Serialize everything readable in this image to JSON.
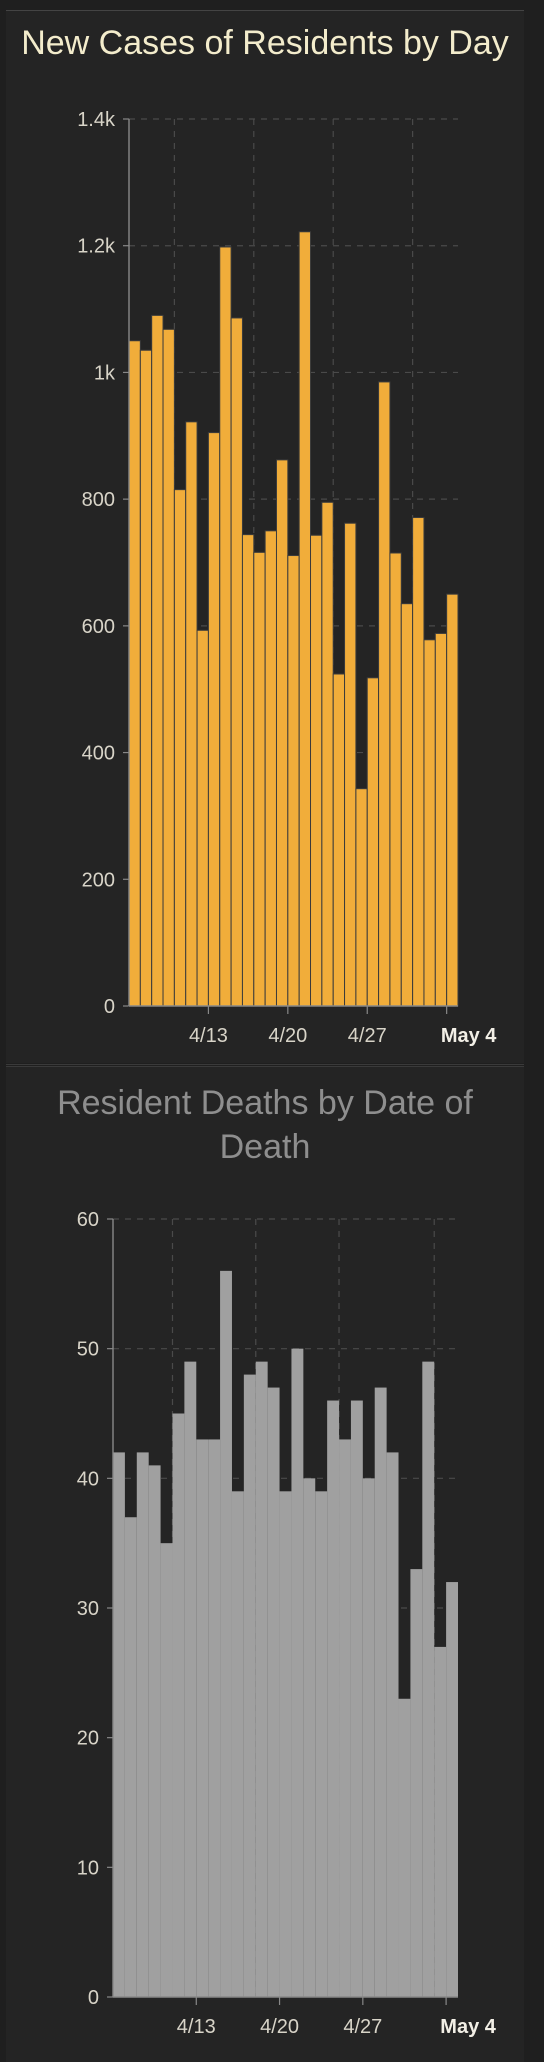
{
  "charts": {
    "cases": {
      "title": "New Cases of Residents by Day"
    },
    "deaths": {
      "title": "Resident Deaths by Date of Death"
    }
  },
  "chart_data": [
    {
      "type": "bar",
      "title": "New Cases of Residents by Day",
      "bar_color": "#f1ad3a",
      "ylim": [
        0,
        1400
      ],
      "yticks": [
        0,
        200,
        400,
        600,
        800,
        1000,
        1200,
        1400
      ],
      "ytick_labels": [
        "0",
        "200",
        "400",
        "600",
        "800",
        "1k",
        "1.2k",
        "1.4k"
      ],
      "xtick_labels": [
        "4/13",
        "4/20",
        "4/27",
        "May 4"
      ],
      "grid": true,
      "values": [
        1050,
        1035,
        1090,
        1068,
        815,
        922,
        593,
        905,
        1198,
        1086,
        744,
        716,
        750,
        862,
        711,
        1222,
        743,
        795,
        524,
        762,
        343,
        518,
        985,
        715,
        635,
        771,
        578,
        588,
        650
      ]
    },
    {
      "type": "bar",
      "title": "Resident Deaths by Date of Death",
      "bar_color": "#a0a0a0",
      "ylim": [
        0,
        60
      ],
      "yticks": [
        0,
        10,
        20,
        30,
        40,
        50,
        60
      ],
      "ytick_labels": [
        "0",
        "10",
        "20",
        "30",
        "40",
        "50",
        "60"
      ],
      "xtick_labels": [
        "4/13",
        "4/20",
        "4/27",
        "May 4"
      ],
      "grid": true,
      "values": [
        42,
        37,
        42,
        41,
        35,
        45,
        49,
        43,
        43,
        56,
        39,
        48,
        49,
        47,
        39,
        50,
        40,
        39,
        46,
        43,
        46,
        40,
        47,
        42,
        23,
        33,
        49,
        27,
        32
      ]
    }
  ]
}
